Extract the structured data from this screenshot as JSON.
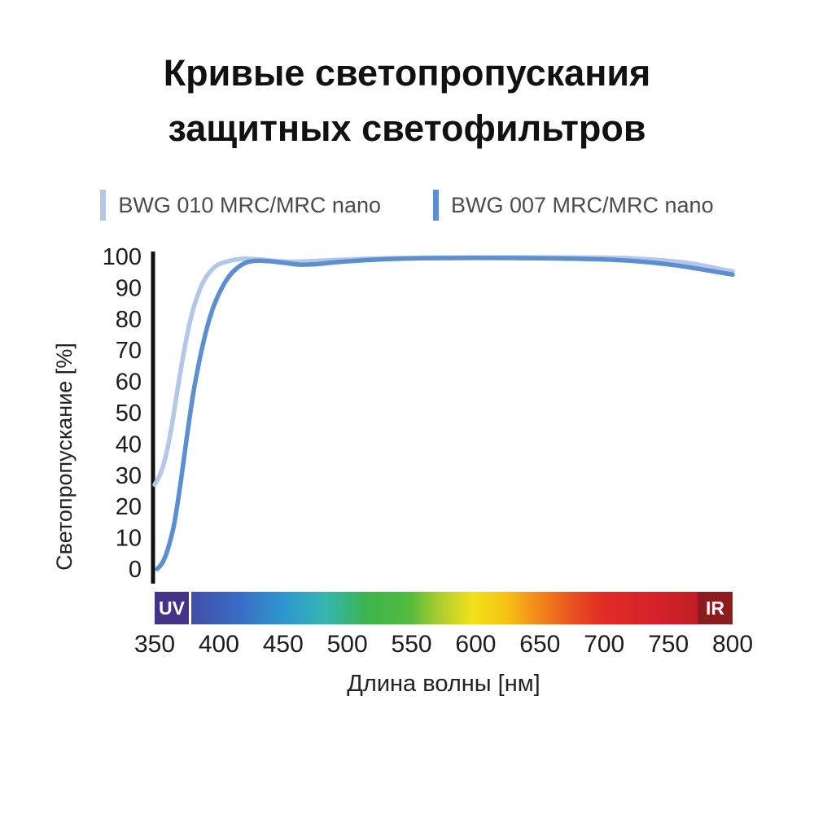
{
  "title": {
    "line1": "Кривые светопропускания",
    "line2": "защитных светофильтров"
  },
  "legend": {
    "items": [
      {
        "label": "BWG 010 MRC/MRC nano",
        "color": "#b5c7e8"
      },
      {
        "label": "BWG 007 MRC/MRC nano",
        "color": "#5b8fd0"
      }
    ]
  },
  "chart_data": {
    "type": "line",
    "title": "Кривые светопропускания защитных светофильтров",
    "xlabel": "Длина волны [нм]",
    "ylabel": "Светопропускание [%]",
    "xlim": [
      350,
      800
    ],
    "ylim": [
      0,
      100
    ],
    "x_ticks": [
      350,
      400,
      450,
      500,
      550,
      600,
      650,
      700,
      750,
      800
    ],
    "y_ticks": [
      0,
      10,
      20,
      30,
      40,
      50,
      60,
      70,
      80,
      90,
      100
    ],
    "grid": false,
    "legend_position": "top",
    "series": [
      {
        "name": "BWG 010 MRC/MRC nano",
        "color": "#b5c7e8",
        "x": [
          350,
          354,
          358,
          363,
          368,
          373,
          378,
          383,
          388,
          393,
          398,
          404,
          412,
          420,
          432,
          445,
          458,
          472,
          488,
          505,
          530,
          560,
          600,
          650,
          700,
          725,
          750,
          770,
          785,
          800
        ],
        "y": [
          27,
          30,
          35,
          45,
          58,
          70,
          80,
          87,
          92,
          95,
          97,
          98.1,
          98.9,
          99.3,
          99.0,
          98.5,
          98.3,
          98.5,
          98.8,
          99.1,
          99.4,
          99.6,
          99.7,
          99.7,
          99.6,
          99.3,
          98.6,
          97.6,
          96.4,
          95.2
        ]
      },
      {
        "name": "BWG 007 MRC/MRC nano",
        "color": "#5b8fd0",
        "x": [
          352,
          356,
          360,
          365,
          370,
          375,
          380,
          385,
          390,
          395,
          400,
          406,
          412,
          420,
          428,
          438,
          450,
          462,
          475,
          490,
          510,
          535,
          560,
          600,
          650,
          700,
          730,
          755,
          775,
          800
        ],
        "y": [
          0,
          2,
          6,
          14,
          27,
          42,
          56,
          67,
          76,
          83,
          88,
          92.5,
          95.5,
          97.8,
          98.6,
          98.5,
          98.0,
          97.4,
          97.5,
          98.1,
          98.7,
          99.2,
          99.4,
          99.5,
          99.4,
          99.0,
          98.3,
          97.2,
          95.9,
          94.2
        ]
      }
    ],
    "spectrum_axis": {
      "uv_label": "UV",
      "ir_label": "IR",
      "uv_color": "#443389",
      "ir_color": "#8e1b1e",
      "gradient": [
        {
          "at": 0,
          "color": "#3b2e8f"
        },
        {
          "at": 0.07,
          "color": "#4150ab"
        },
        {
          "at": 0.15,
          "color": "#3a6ec6"
        },
        {
          "at": 0.225,
          "color": "#2f97cf"
        },
        {
          "at": 0.295,
          "color": "#35b5b0"
        },
        {
          "at": 0.37,
          "color": "#3cb54a"
        },
        {
          "at": 0.44,
          "color": "#52bb3e"
        },
        {
          "at": 0.49,
          "color": "#a8cc2e"
        },
        {
          "at": 0.55,
          "color": "#f2e21c"
        },
        {
          "at": 0.605,
          "color": "#f6c515"
        },
        {
          "at": 0.66,
          "color": "#f28c1b"
        },
        {
          "at": 0.72,
          "color": "#ea5420"
        },
        {
          "at": 0.775,
          "color": "#e22c24"
        },
        {
          "at": 0.86,
          "color": "#d6222a"
        },
        {
          "at": 0.94,
          "color": "#c01e24"
        },
        {
          "at": 1,
          "color": "#a81e22"
        }
      ]
    }
  }
}
